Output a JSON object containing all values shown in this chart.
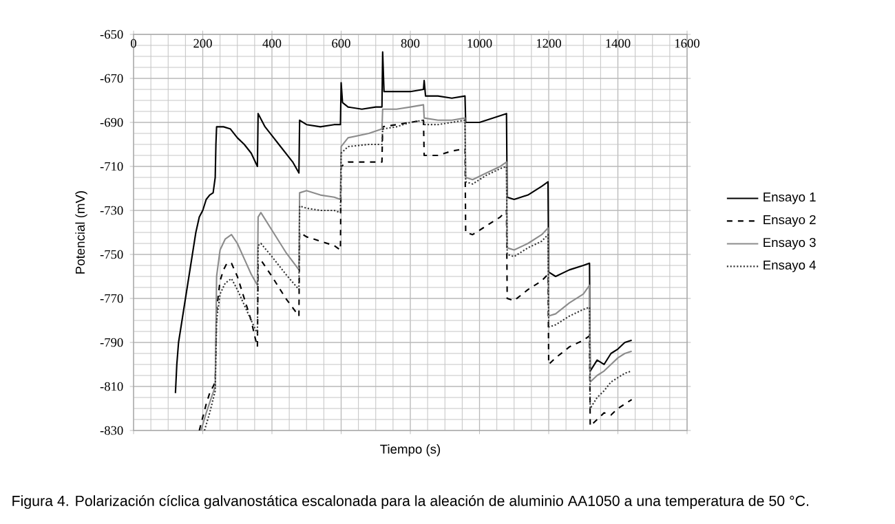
{
  "chart_data": {
    "type": "line",
    "xlabel": "Tiempo (s)",
    "ylabel": "Potencial (mV)",
    "annotations": [
      "Figura 4. Polarización cíclica galvanostática escalonada para la aleación de aluminio AA1050 a una temperatura de 50 °C."
    ],
    "xlim": [
      0,
      1600
    ],
    "xticks": [
      0,
      200,
      400,
      600,
      800,
      1000,
      1200,
      1400,
      1600
    ],
    "ylim": [
      -830,
      -650
    ],
    "yticks": [
      -830,
      -810,
      -790,
      -770,
      -750,
      -730,
      -710,
      -690,
      -670,
      -650
    ],
    "grid": true,
    "legend": "right",
    "series": [
      {
        "name": "Ensayo 1",
        "color": "#000000",
        "line_style": "solid",
        "x": [
          121,
          125,
          130,
          140,
          150,
          160,
          170,
          180,
          190,
          200,
          210,
          220,
          230,
          236,
          238,
          240,
          260,
          280,
          300,
          320,
          340,
          358,
          360,
          380,
          400,
          420,
          440,
          460,
          478,
          480,
          500,
          540,
          580,
          598,
          600,
          604,
          620,
          660,
          700,
          718,
          720,
          724,
          760,
          800,
          838,
          840,
          844,
          880,
          920,
          958,
          960,
          1000,
          1040,
          1078,
          1080,
          1100,
          1140,
          1180,
          1198,
          1200,
          1220,
          1260,
          1300,
          1318,
          1320,
          1340,
          1360,
          1380,
          1400,
          1420,
          1440
        ],
        "values": [
          -813,
          -800,
          -790,
          -780,
          -770,
          -760,
          -750,
          -740,
          -733,
          -730,
          -725,
          -723,
          -722,
          -715,
          -700,
          -692,
          -692,
          -693,
          -697,
          -700,
          -704,
          -710,
          -686,
          -692,
          -696,
          -700,
          -704,
          -708,
          -713,
          -689,
          -691,
          -692,
          -691,
          -691,
          -672,
          -681,
          -683,
          -684,
          -683,
          -683,
          -658,
          -676,
          -676,
          -676,
          -675,
          -671,
          -678,
          -678,
          -679,
          -678,
          -690,
          -690,
          -688,
          -686,
          -724,
          -725,
          -723,
          -719,
          -717,
          -758,
          -760,
          -757,
          -755,
          -754,
          -803,
          -798,
          -800,
          -795,
          -793,
          -790,
          -789
        ]
      },
      {
        "name": "Ensayo 2",
        "color": "#000000",
        "line_style": "dashed",
        "x": [
          190,
          200,
          210,
          220,
          230,
          236,
          240,
          250,
          260,
          270,
          283,
          300,
          320,
          340,
          350,
          358,
          360,
          370,
          400,
          440,
          478,
          480,
          500,
          540,
          580,
          598,
          600,
          620,
          680,
          718,
          720,
          760,
          800,
          838,
          840,
          880,
          920,
          958,
          960,
          980,
          1020,
          1060,
          1078,
          1080,
          1100,
          1140,
          1180,
          1198,
          1200,
          1220,
          1260,
          1300,
          1318,
          1320,
          1340,
          1360,
          1380,
          1400,
          1420,
          1440
        ],
        "values": [
          -830,
          -824,
          -818,
          -813,
          -810,
          -808,
          -775,
          -762,
          -757,
          -754,
          -754,
          -760,
          -770,
          -780,
          -787,
          -792,
          -754,
          -753,
          -760,
          -770,
          -778,
          -740,
          -742,
          -744,
          -746,
          -748,
          -710,
          -708,
          -708,
          -708,
          -692,
          -691,
          -690,
          -689,
          -705,
          -705,
          -703,
          -702,
          -740,
          -741,
          -737,
          -733,
          -730,
          -770,
          -771,
          -766,
          -762,
          -759,
          -800,
          -797,
          -792,
          -789,
          -787,
          -828,
          -825,
          -822,
          -823,
          -820,
          -818,
          -816
        ]
      },
      {
        "name": "Ensayo 3",
        "color": "#8c8c8c",
        "line_style": "solid",
        "x": [
          195,
          210,
          225,
          236,
          240,
          250,
          265,
          283,
          300,
          320,
          340,
          358,
          360,
          368,
          400,
          440,
          478,
          480,
          500,
          540,
          580,
          598,
          600,
          620,
          680,
          718,
          720,
          760,
          800,
          838,
          840,
          880,
          920,
          958,
          960,
          980,
          1020,
          1060,
          1078,
          1080,
          1100,
          1140,
          1180,
          1198,
          1200,
          1220,
          1260,
          1300,
          1318,
          1320,
          1340,
          1360,
          1380,
          1400,
          1420,
          1440
        ],
        "values": [
          -830,
          -822,
          -815,
          -810,
          -760,
          -748,
          -743,
          -741,
          -745,
          -752,
          -759,
          -764,
          -733,
          -731,
          -739,
          -749,
          -757,
          -722,
          -721,
          -723,
          -724,
          -725,
          -701,
          -697,
          -695,
          -693,
          -684,
          -684,
          -683,
          -682,
          -688,
          -689,
          -689,
          -688,
          -715,
          -716,
          -713,
          -710,
          -708,
          -747,
          -748,
          -745,
          -741,
          -738,
          -778,
          -777,
          -772,
          -768,
          -764,
          -808,
          -805,
          -803,
          -800,
          -797,
          -795,
          -794
        ]
      },
      {
        "name": "Ensayo 4",
        "color": "#333333",
        "line_style": "dotted",
        "x": [
          205,
          220,
          236,
          240,
          250,
          265,
          283,
          300,
          320,
          340,
          358,
          360,
          368,
          400,
          440,
          478,
          480,
          500,
          540,
          580,
          598,
          600,
          620,
          680,
          718,
          720,
          760,
          800,
          838,
          840,
          880,
          920,
          958,
          960,
          980,
          1020,
          1060,
          1078,
          1080,
          1100,
          1140,
          1180,
          1198,
          1200,
          1220,
          1260,
          1300,
          1318,
          1320,
          1340,
          1360,
          1380,
          1400,
          1420,
          1440
        ],
        "values": [
          -830,
          -822,
          -812,
          -780,
          -768,
          -763,
          -761,
          -766,
          -773,
          -780,
          -786,
          -746,
          -745,
          -751,
          -759,
          -766,
          -728,
          -729,
          -730,
          -730,
          -731,
          -704,
          -701,
          -700,
          -700,
          -693,
          -692,
          -690,
          -689,
          -691,
          -691,
          -690,
          -689,
          -717,
          -718,
          -714,
          -711,
          -710,
          -750,
          -751,
          -747,
          -744,
          -741,
          -783,
          -782,
          -778,
          -775,
          -774,
          -820,
          -815,
          -812,
          -808,
          -806,
          -804,
          -803
        ]
      }
    ]
  }
}
